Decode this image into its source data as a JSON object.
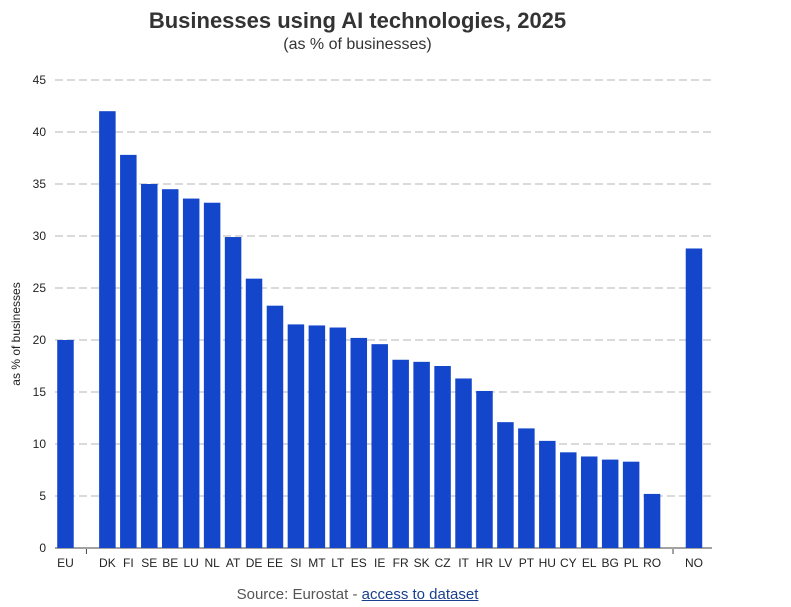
{
  "chart_data": {
    "type": "bar",
    "title": "Businesses using AI technologies, 2025",
    "subtitle": "(as % of businesses)",
    "ylabel": "as % of businesses",
    "xlabel": "",
    "ylim": [
      0,
      45
    ],
    "yticks": [
      0,
      5,
      10,
      15,
      20,
      25,
      30,
      35,
      40,
      45
    ],
    "grid": true,
    "bar_color": "#1446cc",
    "groups": [
      {
        "categories": [
          "EU"
        ],
        "values": [
          20.0
        ]
      },
      {
        "categories": [
          "DK",
          "FI",
          "SE",
          "BE",
          "LU",
          "NL",
          "AT",
          "DE",
          "EE",
          "SI",
          "MT",
          "LT",
          "ES",
          "IE",
          "FR",
          "SK",
          "CZ",
          "IT",
          "HR",
          "LV",
          "PT",
          "HU",
          "CY",
          "EL",
          "BG",
          "PL",
          "RO"
        ],
        "values": [
          42.0,
          37.8,
          35.0,
          34.5,
          33.6,
          33.2,
          29.9,
          25.9,
          23.3,
          21.5,
          21.4,
          21.2,
          20.2,
          19.6,
          18.1,
          17.9,
          17.5,
          16.3,
          15.1,
          12.1,
          11.5,
          10.3,
          9.2,
          8.8,
          8.5,
          8.3,
          5.2
        ]
      },
      {
        "categories": [
          "NO"
        ],
        "values": [
          28.8
        ]
      }
    ]
  },
  "source": {
    "prefix": "Source: Eurostat - ",
    "link_text": "access to dataset"
  }
}
